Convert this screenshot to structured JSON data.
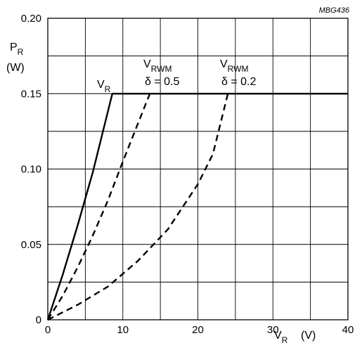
{
  "chart_data": {
    "type": "line",
    "code": "MBG436",
    "ylabel": {
      "main": "P",
      "sub": "R",
      "unit": "(W)"
    },
    "xlabel": {
      "main": "V",
      "sub": "R",
      "unit": "(V)"
    },
    "xlim": [
      0,
      40
    ],
    "ylim": [
      0,
      0.2
    ],
    "grid": true,
    "x_ticks": [
      {
        "value": 0,
        "label": "0"
      },
      {
        "value": 10,
        "label": "10"
      },
      {
        "value": 20,
        "label": "20"
      },
      {
        "value": 30,
        "label": "30"
      },
      {
        "value": 40,
        "label": "40"
      }
    ],
    "y_ticks": [
      {
        "value": 0,
        "label": "0"
      },
      {
        "value": 0.05,
        "label": "0.05"
      },
      {
        "value": 0.1,
        "label": "0.10"
      },
      {
        "value": 0.15,
        "label": "0.15"
      },
      {
        "value": 0.2,
        "label": "0.20"
      }
    ],
    "series": [
      {
        "id": "vr",
        "style": "solid",
        "label": {
          "main": "V",
          "sub": "R"
        },
        "points": [
          [
            0,
            0
          ],
          [
            2,
            0.03
          ],
          [
            4,
            0.063
          ],
          [
            6,
            0.098
          ],
          [
            8,
            0.138
          ],
          [
            8.6,
            0.15
          ],
          [
            40,
            0.15
          ]
        ]
      },
      {
        "id": "vrwm-05",
        "style": "dashed",
        "label": {
          "main": "V",
          "sub": "RWM",
          "line2": "δ = 0.5"
        },
        "points": [
          [
            0,
            0
          ],
          [
            2,
            0.016
          ],
          [
            4,
            0.035
          ],
          [
            6,
            0.056
          ],
          [
            8,
            0.079
          ],
          [
            10,
            0.105
          ],
          [
            12,
            0.13
          ],
          [
            13.6,
            0.15
          ]
        ]
      },
      {
        "id": "vrwm-02",
        "style": "dashed",
        "label": {
          "main": "V",
          "sub": "RWM",
          "line2": "δ = 0.2"
        },
        "points": [
          [
            0,
            0
          ],
          [
            4,
            0.01
          ],
          [
            8,
            0.022
          ],
          [
            12,
            0.039
          ],
          [
            16,
            0.06
          ],
          [
            20,
            0.09
          ],
          [
            22,
            0.11
          ],
          [
            24,
            0.15
          ]
        ]
      }
    ]
  }
}
